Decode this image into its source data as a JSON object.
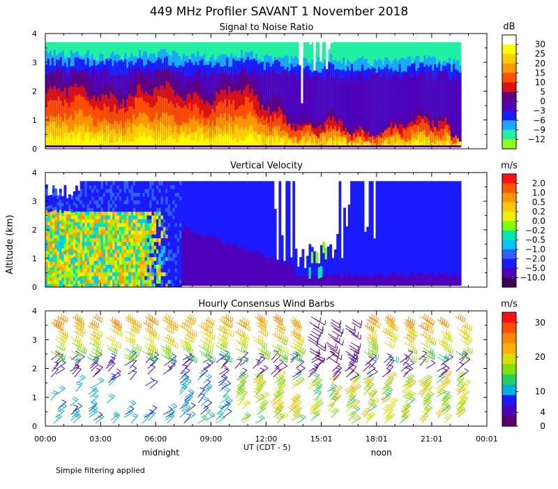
{
  "title": "449 MHz Profiler SAVANT  1 November 2018",
  "footnote": "Simple filtering applied",
  "xaxis": {
    "label": "UT  (CDT - 5)",
    "ticks": [
      "00:00",
      "03:00",
      "06:00",
      "09:00",
      "12:00",
      "15:01",
      "18:01",
      "21:01",
      "00:01"
    ],
    "tick_hours": [
      0,
      3,
      6,
      9,
      12,
      15,
      18,
      21,
      24
    ],
    "annotations": [
      {
        "text": "midnight",
        "hour": 6
      },
      {
        "text": "noon",
        "hour": 18
      }
    ],
    "range_hours": [
      0,
      24
    ]
  },
  "ylabel": "Altitude (km)",
  "chart_data": [
    {
      "type": "heatmap",
      "title": "Signal to Noise Ratio",
      "unit": "dB",
      "xlabel": "UT  (CDT - 5)",
      "ylabel": "Altitude (km)",
      "ylim": [
        0,
        4
      ],
      "yticks": [
        "0",
        "1",
        "2",
        "3",
        "4"
      ],
      "colorbar": {
        "labels": [
          "30",
          "25",
          "20",
          "15",
          "10",
          "5",
          "0",
          "−3",
          "−6",
          "−9",
          "−12"
        ],
        "colors": [
          "#ffffff",
          "#ffff00",
          "#ffd000",
          "#ff9800",
          "#ff5000",
          "#e01010",
          "#5c0080",
          "#5000b8",
          "#1a1aff",
          "#18a8ff",
          "#20f0a0",
          "#90ff20"
        ]
      }
    },
    {
      "type": "heatmap",
      "title": "Vertical Velocity",
      "unit": "m/s",
      "xlabel": "UT  (CDT - 5)",
      "ylabel": "Altitude (km)",
      "ylim": [
        0,
        4
      ],
      "yticks": [
        "0",
        "1",
        "2",
        "3",
        "4"
      ],
      "colorbar": {
        "labels": [
          "2.0",
          "1.0",
          "0.5",
          "0.2",
          "0.0",
          "−0.2",
          "−0.5",
          "−1.0",
          "−2.0",
          "−5.0",
          "−10.0"
        ],
        "colors": [
          "#ff1010",
          "#ff5a00",
          "#ff9800",
          "#ffc800",
          "#f0f000",
          "#80ff00",
          "#00e8b0",
          "#00c8ff",
          "#3060ff",
          "#1a1aff",
          "#5000b8",
          "#400050"
        ]
      }
    },
    {
      "type": "wind_barbs",
      "title": "Hourly Consensus Wind Barbs",
      "unit": "m/s",
      "xlabel": "UT  (CDT - 5)",
      "ylabel": "Altitude (km)",
      "ylim": [
        0,
        4
      ],
      "yticks": [
        "0",
        "1",
        "2",
        "3",
        "4"
      ],
      "colorbar": {
        "labels": [
          "30",
          "20",
          "10",
          "4",
          "0"
        ],
        "label_values": [
          30,
          20,
          10,
          4,
          0
        ],
        "range": [
          0,
          33
        ],
        "colors": [
          "#ff1010",
          "#ff5000",
          "#ff8800",
          "#ffb000",
          "#d8e000",
          "#80e000",
          "#20d060",
          "#00b0e0",
          "#1a1aff",
          "#5000b8",
          "#5c0070"
        ]
      }
    }
  ]
}
